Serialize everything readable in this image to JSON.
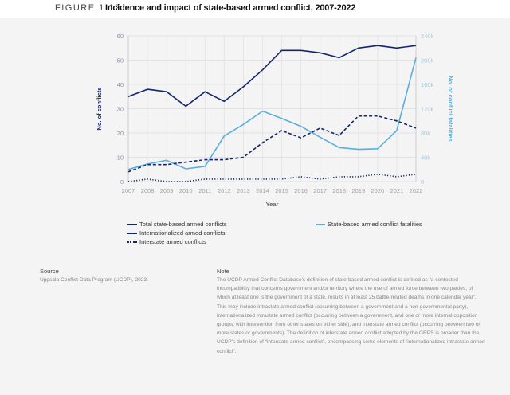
{
  "figure_label": "FIGURE 1.12",
  "figure_title": "Incidence and impact of state-based armed conflict, 2007-2022",
  "chart_data": {
    "type": "line",
    "x": [
      2007,
      2008,
      2009,
      2010,
      2011,
      2012,
      2013,
      2014,
      2015,
      2016,
      2017,
      2018,
      2019,
      2020,
      2021,
      2022
    ],
    "xlabel": "Year",
    "ylabel": "No. of conflicts",
    "ylabel_right": "No. of conflict fatalities",
    "ylim": [
      0,
      60
    ],
    "ylim_right": [
      0,
      240000
    ],
    "yticks": [
      "0",
      "10",
      "20",
      "30",
      "40",
      "50",
      "60"
    ],
    "yticks_right": [
      "0",
      "40k",
      "80k",
      "120k",
      "160k",
      "200k",
      "240k"
    ],
    "grid": true,
    "legend_position": "bottom",
    "series": [
      {
        "name": "Total state-based armed conflicts",
        "axis": "left",
        "style": "solid",
        "color": "#13266b",
        "values": [
          35,
          38,
          37,
          31,
          37,
          33,
          39,
          46,
          54,
          54,
          53,
          51,
          55,
          56,
          55,
          56
        ]
      },
      {
        "name": "Internationalized armed conflicts",
        "axis": "left",
        "style": "dashed",
        "color": "#13266b",
        "values": [
          4,
          7,
          7,
          8,
          9,
          9,
          10,
          16,
          21,
          18,
          22,
          19,
          27,
          27,
          25,
          22
        ]
      },
      {
        "name": "Interstate armed conflicts",
        "axis": "left",
        "style": "dotted",
        "color": "#13266b",
        "values": [
          0,
          1,
          0,
          0,
          1,
          1,
          1,
          1,
          1,
          2,
          1,
          2,
          2,
          3,
          2,
          3
        ]
      },
      {
        "name": "State-based armed conflict fatalities",
        "axis": "right",
        "style": "solid",
        "color": "#5aaedc",
        "values": [
          20000,
          29000,
          35000,
          21000,
          25000,
          75000,
          94000,
          116000,
          104000,
          91000,
          73000,
          56000,
          53000,
          54000,
          84000,
          204000
        ]
      }
    ]
  },
  "source": {
    "heading": "Source",
    "text": "Uppsala Conflict Data Program (UCDP), 2023."
  },
  "note": {
    "heading": "Note",
    "text": "The UCDP Armed Conflict Database’s definition of state-based armed conflict is defined as “a contested incompatibility that concerns government and/or territory where the use of armed force between two parties, of which at least one is the government of a state, results in at least 25 battle-related deaths in one calendar year”. This may include intrastate armed conflict (occurring between a government and a non-governmental party), internationalized intrastate armed conflict (occurring between a government, and one or more internal opposition groups, with intervention from other states on either side), and interstate armed conflict (occurring between two or more states or governments). The definition of interstate armed conflict adopted by the GRPS is broader than the UCDP’s definition of “interstate armed conflict”, encompassing some elements of “internationalized intrastate armed conflict”."
  }
}
